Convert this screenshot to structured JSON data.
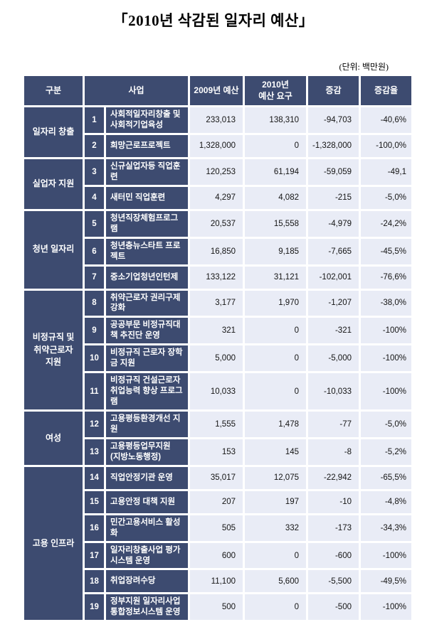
{
  "title": "「2010년 삭감된 일자리 예산」",
  "unit_note": "(단위: 백만원)",
  "colors": {
    "header_bg": "#3d4b70",
    "dark_cell_bg": "#3d4b70",
    "light_cell_bg": "#e9ecf6",
    "grid_gap": "#ffffff",
    "dark_cell_text": "#ffffff",
    "light_cell_text": "#141414"
  },
  "columns": [
    "구분",
    "사업",
    "2009년 예산",
    "2010년\n예산 요구",
    "증감",
    "증감율"
  ],
  "groups": [
    {
      "category": "일자리 창출",
      "rows": [
        {
          "no": "1",
          "name": "사회적일자리창출 및 사회적기업육성",
          "budget_2009": "233,013",
          "request_2010": "138,310",
          "change": "-94,703",
          "change_rate": "-40,6%"
        },
        {
          "no": "2",
          "name": "희망근로프로젝트",
          "budget_2009": "1,328,000",
          "request_2010": "0",
          "change": "-1,328,000",
          "change_rate": "-100,0%"
        }
      ]
    },
    {
      "category": "실업자 지원",
      "rows": [
        {
          "no": "3",
          "name": "신규실업자등 직업훈련",
          "budget_2009": "120,253",
          "request_2010": "61,194",
          "change": "-59,059",
          "change_rate": "-49,1"
        },
        {
          "no": "4",
          "name": "새터민 직업훈련",
          "budget_2009": "4,297",
          "request_2010": "4,082",
          "change": "-215",
          "change_rate": "-5,0%"
        }
      ]
    },
    {
      "category": "청년 일자리",
      "rows": [
        {
          "no": "5",
          "name": "청년직장체험프로그램",
          "budget_2009": "20,537",
          "request_2010": "15,558",
          "change": "-4,979",
          "change_rate": "-24,2%"
        },
        {
          "no": "6",
          "name": "청년층뉴스타트 프로젝트",
          "budget_2009": "16,850",
          "request_2010": "9,185",
          "change": "-7,665",
          "change_rate": "-45,5%"
        },
        {
          "no": "7",
          "name": "중소기업청년인턴제",
          "budget_2009": "133,122",
          "request_2010": "31,121",
          "change": "-102,001",
          "change_rate": "-76,6%"
        }
      ]
    },
    {
      "category": "비정규직 및\n취약근로자\n지원",
      "rows": [
        {
          "no": "8",
          "name": "취약근로자 권리구제 강화",
          "budget_2009": "3,177",
          "request_2010": "1,970",
          "change": "-1,207",
          "change_rate": "-38,0%"
        },
        {
          "no": "9",
          "name": "공공부문 비정규직대책 추진단 운영",
          "budget_2009": "321",
          "request_2010": "0",
          "change": "-321",
          "change_rate": "-100%"
        },
        {
          "no": "10",
          "name": "비정규직 근로자 장학금 지원",
          "budget_2009": "5,000",
          "request_2010": "0",
          "change": "-5,000",
          "change_rate": "-100%"
        },
        {
          "no": "11",
          "name": "비정규직 건설근로자 취업능력 향상 프로그램",
          "budget_2009": "10,033",
          "request_2010": "0",
          "change": "-10,033",
          "change_rate": "-100%"
        }
      ]
    },
    {
      "category": "여성",
      "rows": [
        {
          "no": "12",
          "name": "고용평등환경개선 지원",
          "budget_2009": "1,555",
          "request_2010": "1,478",
          "change": "-77",
          "change_rate": "-5,0%"
        },
        {
          "no": "13",
          "name": "고용평등업무지원\n(지방노동행정)",
          "budget_2009": "153",
          "request_2010": "145",
          "change": "-8",
          "change_rate": "-5,2%"
        }
      ]
    },
    {
      "category": "고용 인프라",
      "rows": [
        {
          "no": "14",
          "name": "직업안정기관 운영",
          "budget_2009": "35,017",
          "request_2010": "12,075",
          "change": "-22,942",
          "change_rate": "-65,5%"
        },
        {
          "no": "15",
          "name": "고용안정 대책 지원",
          "budget_2009": "207",
          "request_2010": "197",
          "change": "-10",
          "change_rate": "-4,8%"
        },
        {
          "no": "16",
          "name": "민간고용서비스 활성화",
          "budget_2009": "505",
          "request_2010": "332",
          "change": "-173",
          "change_rate": "-34,3%"
        },
        {
          "no": "17",
          "name": "일자리창출사업 평가시스템 운영",
          "budget_2009": "600",
          "request_2010": "0",
          "change": "-600",
          "change_rate": "-100%"
        },
        {
          "no": "18",
          "name": "취업장려수당",
          "budget_2009": "11,100",
          "request_2010": "5,600",
          "change": "-5,500",
          "change_rate": "-49,5%"
        },
        {
          "no": "19",
          "name": "정부지원 일자리사업 통합정보시스템 운영",
          "budget_2009": "500",
          "request_2010": "0",
          "change": "-500",
          "change_rate": "-100%"
        }
      ]
    }
  ]
}
